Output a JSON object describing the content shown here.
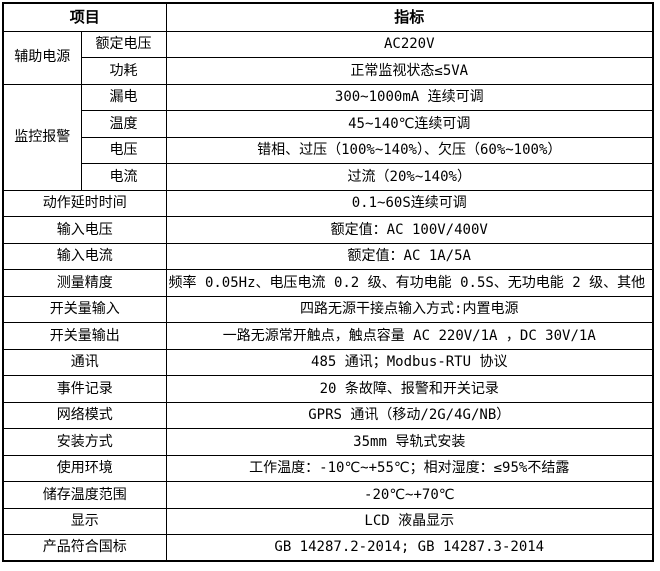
{
  "colors": {
    "border": "#000000",
    "text": "#000000",
    "background": "#ffffff"
  },
  "header": {
    "item_label": "项目",
    "indicator_label": "指标"
  },
  "grouped_rows": [
    {
      "group": "辅助电源",
      "items": [
        {
          "label": "额定电压",
          "value": "AC220V"
        },
        {
          "label": "功耗",
          "value": "正常监视状态≤5VA"
        }
      ]
    },
    {
      "group": "监控报警",
      "items": [
        {
          "label": "漏电",
          "value": "300~1000mA 连续可调"
        },
        {
          "label": "温度",
          "value": "45~140℃连续可调"
        },
        {
          "label": "电压",
          "value": "错相、过压（100%~140%）、欠压（60%~100%）"
        },
        {
          "label": "电流",
          "value": "过流（20%~140%）"
        }
      ]
    }
  ],
  "simple_rows": [
    {
      "label": "动作延时时间",
      "value": "0.1~60S连续可调"
    },
    {
      "label": "输入电压",
      "value": "额定值：AC 100V/400V"
    },
    {
      "label": "输入电流",
      "value": "额定值：AC 1A/5A"
    },
    {
      "label": "测量精度",
      "value": "频率 0.05Hz、电压电流 0.2 级、有功电能 0.5S、无功电能 2 级、其他 0.5 级"
    },
    {
      "label": "开关量输入",
      "value": "四路无源干接点输入方式:内置电源"
    },
    {
      "label": "开关量输出",
      "value": "一路无源常开触点，触点容量 AC 220V/1A ，DC 30V/1A"
    },
    {
      "label": "通讯",
      "value": "485 通讯；Modbus-RTU 协议"
    },
    {
      "label": "事件记录",
      "value": "20 条故障、报警和开关记录"
    },
    {
      "label": "网络模式",
      "value": "GPRS 通讯（移动/2G/4G/NB）"
    },
    {
      "label": "安装方式",
      "value": "35mm 导轨式安装"
    },
    {
      "label": "使用环境",
      "value": "工作温度：-10℃~+55℃；相对湿度：≤95%不结露"
    },
    {
      "label": "储存温度范围",
      "value": "-20℃~+70℃"
    },
    {
      "label": "显示",
      "value": "LCD 液晶显示"
    },
    {
      "label": "产品符合国标",
      "value": "GB 14287.2-2014; GB 14287.3-2014"
    }
  ]
}
